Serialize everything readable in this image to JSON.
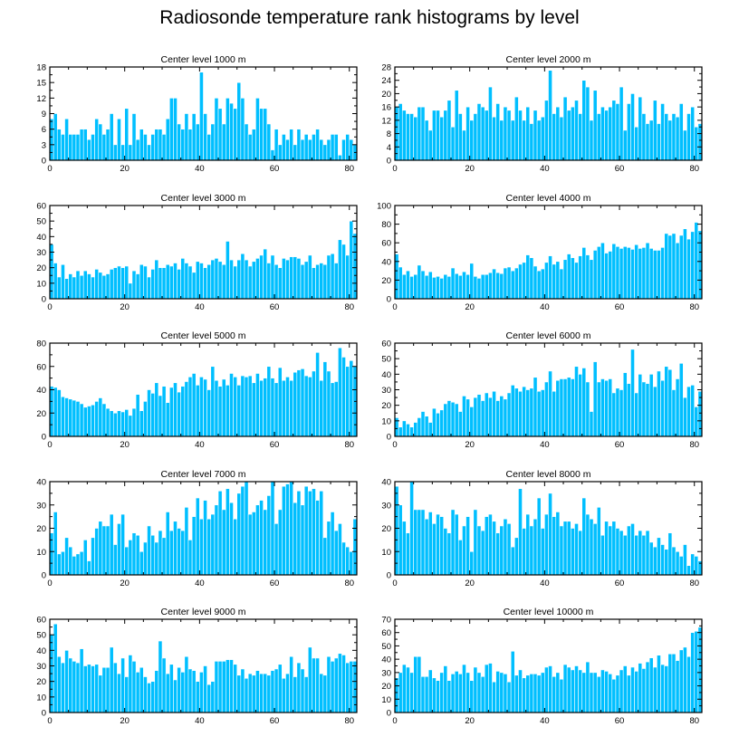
{
  "page": {
    "title": "Radiosonde temperature rank histograms by level"
  },
  "style": {
    "bar_color": "#00BFFF",
    "bar_edge": "#ffffff",
    "axis_color": "#000000"
  },
  "chart_data": [
    {
      "type": "bar",
      "title": "Center level 1000 m",
      "xlabel": "",
      "ylabel": "",
      "xlim": [
        0,
        82
      ],
      "ylim": [
        0,
        18
      ],
      "xticks": [
        0,
        20,
        40,
        60,
        80
      ],
      "yticks": [
        0,
        3,
        6,
        9,
        12,
        15,
        18
      ],
      "values": [
        8,
        9,
        6,
        5,
        8,
        5,
        5,
        5,
        6,
        6,
        4,
        5,
        8,
        7,
        5,
        6,
        9,
        3,
        8,
        3,
        10,
        3,
        9,
        4,
        6,
        5,
        3,
        5,
        6,
        6,
        5,
        8,
        12,
        12,
        7,
        6,
        9,
        6,
        9,
        7,
        17,
        9,
        5,
        7,
        12,
        10,
        7,
        12,
        11,
        10,
        15,
        12,
        7,
        5,
        6,
        12,
        10,
        10,
        7,
        2,
        6,
        3,
        5,
        4,
        6,
        3,
        6,
        4,
        5,
        4,
        5,
        6,
        4,
        3,
        4,
        5,
        5,
        1,
        4,
        5,
        4,
        3
      ]
    },
    {
      "type": "bar",
      "title": "Center level 2000 m",
      "xlabel": "",
      "ylabel": "",
      "xlim": [
        0,
        82
      ],
      "ylim": [
        0,
        28
      ],
      "xticks": [
        0,
        20,
        40,
        60,
        80
      ],
      "yticks": [
        0,
        4,
        8,
        12,
        16,
        20,
        24,
        28
      ],
      "values": [
        16,
        17,
        15,
        14,
        14,
        13,
        16,
        16,
        12,
        9,
        15,
        15,
        13,
        15,
        18,
        10,
        21,
        14,
        9,
        16,
        12,
        14,
        17,
        16,
        15,
        22,
        13,
        17,
        12,
        16,
        15,
        12,
        19,
        15,
        12,
        16,
        11,
        15,
        12,
        13,
        18,
        27,
        14,
        16,
        13,
        19,
        15,
        16,
        18,
        14,
        24,
        22,
        12,
        21,
        14,
        16,
        15,
        16,
        18,
        17,
        22,
        9,
        17,
        20,
        10,
        19,
        14,
        11,
        12,
        18,
        11,
        17,
        14,
        12,
        14,
        13,
        17,
        9,
        14,
        16,
        10,
        11
      ]
    },
    {
      "type": "bar",
      "title": "Center level 3000 m",
      "xlabel": "",
      "ylabel": "",
      "xlim": [
        0,
        82
      ],
      "ylim": [
        0,
        60
      ],
      "xticks": [
        0,
        20,
        40,
        60,
        80
      ],
      "yticks": [
        0,
        10,
        20,
        30,
        40,
        50,
        60
      ],
      "values": [
        35,
        23,
        14,
        22,
        13,
        16,
        14,
        18,
        15,
        18,
        16,
        14,
        19,
        17,
        15,
        16,
        19,
        20,
        21,
        20,
        21,
        10,
        18,
        16,
        22,
        21,
        14,
        19,
        25,
        20,
        20,
        22,
        21,
        23,
        19,
        26,
        23,
        21,
        17,
        24,
        23,
        20,
        22,
        25,
        26,
        24,
        22,
        37,
        25,
        21,
        25,
        29,
        25,
        21,
        24,
        26,
        28,
        32,
        23,
        28,
        22,
        20,
        26,
        25,
        27,
        27,
        26,
        22,
        24,
        28,
        20,
        22,
        23,
        22,
        28,
        29,
        23,
        38,
        35,
        28,
        50,
        42
      ]
    },
    {
      "type": "bar",
      "title": "Center level 4000 m",
      "xlabel": "",
      "ylabel": "",
      "xlim": [
        0,
        82
      ],
      "ylim": [
        0,
        100
      ],
      "xticks": [
        0,
        20,
        40,
        60,
        80
      ],
      "yticks": [
        0,
        20,
        40,
        60,
        80,
        100
      ],
      "values": [
        48,
        34,
        26,
        30,
        24,
        26,
        36,
        30,
        25,
        29,
        23,
        24,
        22,
        26,
        24,
        33,
        27,
        25,
        29,
        26,
        38,
        24,
        22,
        26,
        26,
        28,
        32,
        28,
        27,
        33,
        34,
        30,
        33,
        37,
        39,
        47,
        44,
        35,
        30,
        32,
        39,
        46,
        37,
        40,
        32,
        42,
        48,
        44,
        39,
        46,
        55,
        47,
        42,
        52,
        56,
        60,
        49,
        51,
        59,
        56,
        54,
        56,
        55,
        53,
        58,
        54,
        55,
        60,
        54,
        52,
        52,
        55,
        70,
        68,
        70,
        60,
        68,
        75,
        64,
        72,
        82,
        73
      ]
    },
    {
      "type": "bar",
      "title": "Center level 5000 m",
      "xlabel": "",
      "ylabel": "",
      "xlim": [
        0,
        82
      ],
      "ylim": [
        0,
        80
      ],
      "xticks": [
        0,
        20,
        40,
        60,
        80
      ],
      "yticks": [
        0,
        20,
        40,
        60,
        80
      ],
      "values": [
        43,
        42,
        40,
        34,
        33,
        32,
        31,
        30,
        28,
        25,
        26,
        27,
        30,
        33,
        28,
        24,
        22,
        20,
        22,
        21,
        23,
        18,
        24,
        36,
        22,
        30,
        40,
        37,
        46,
        35,
        43,
        29,
        42,
        46,
        38,
        43,
        47,
        51,
        54,
        44,
        51,
        49,
        40,
        60,
        48,
        43,
        49,
        44,
        54,
        51,
        44,
        52,
        51,
        52,
        46,
        54,
        48,
        50,
        60,
        50,
        46,
        59,
        48,
        51,
        48,
        55,
        57,
        58,
        52,
        51,
        56,
        72,
        48,
        64,
        56,
        46,
        47,
        76,
        68,
        60,
        65,
        60
      ]
    },
    {
      "type": "bar",
      "title": "Center level 6000 m",
      "xlabel": "",
      "ylabel": "",
      "xlim": [
        0,
        82
      ],
      "ylim": [
        0,
        60
      ],
      "xticks": [
        0,
        20,
        40,
        60,
        80
      ],
      "yticks": [
        0,
        10,
        20,
        30,
        40,
        50,
        60
      ],
      "values": [
        12,
        6,
        10,
        8,
        6,
        9,
        12,
        16,
        13,
        9,
        18,
        15,
        17,
        21,
        23,
        22,
        21,
        16,
        26,
        24,
        19,
        25,
        27,
        23,
        28,
        25,
        29,
        23,
        26,
        24,
        28,
        33,
        31,
        29,
        32,
        30,
        31,
        38,
        29,
        30,
        35,
        42,
        29,
        36,
        37,
        37,
        38,
        37,
        45,
        40,
        44,
        35,
        16,
        48,
        35,
        37,
        36,
        37,
        28,
        31,
        30,
        41,
        34,
        56,
        28,
        40,
        35,
        34,
        40,
        32,
        42,
        36,
        45,
        43,
        30,
        37,
        47,
        25,
        32,
        33,
        19,
        29
      ]
    },
    {
      "type": "bar",
      "title": "Center level 7000 m",
      "xlabel": "",
      "ylabel": "",
      "xlim": [
        0,
        82
      ],
      "ylim": [
        0,
        40
      ],
      "xticks": [
        0,
        20,
        40,
        60,
        80
      ],
      "yticks": [
        0,
        10,
        20,
        30,
        40
      ],
      "values": [
        18,
        27,
        9,
        10,
        16,
        12,
        8,
        9,
        10,
        15,
        6,
        16,
        20,
        23,
        21,
        21,
        26,
        13,
        22,
        26,
        12,
        15,
        18,
        17,
        10,
        14,
        21,
        17,
        14,
        19,
        16,
        27,
        19,
        23,
        20,
        19,
        29,
        15,
        25,
        33,
        24,
        32,
        24,
        26,
        30,
        36,
        28,
        37,
        31,
        24,
        35,
        38,
        40,
        26,
        27,
        30,
        32,
        28,
        34,
        40,
        22,
        28,
        38,
        39,
        40,
        31,
        36,
        30,
        38,
        36,
        37,
        32,
        36,
        16,
        23,
        27,
        19,
        22,
        14,
        12,
        10,
        24
      ]
    },
    {
      "type": "bar",
      "title": "Center level 8000 m",
      "xlabel": "",
      "ylabel": "",
      "xlim": [
        0,
        82
      ],
      "ylim": [
        0,
        40
      ],
      "xticks": [
        0,
        20,
        40,
        60,
        80
      ],
      "yticks": [
        0,
        10,
        20,
        30,
        40
      ],
      "values": [
        38,
        30,
        23,
        18,
        40,
        28,
        28,
        28,
        24,
        27,
        22,
        26,
        25,
        20,
        18,
        28,
        26,
        15,
        21,
        25,
        10,
        28,
        21,
        19,
        25,
        26,
        23,
        18,
        21,
        24,
        22,
        12,
        16,
        37,
        20,
        26,
        21,
        24,
        33,
        20,
        26,
        35,
        25,
        27,
        21,
        23,
        23,
        20,
        22,
        19,
        33,
        26,
        24,
        22,
        29,
        17,
        23,
        21,
        23,
        20,
        19,
        17,
        21,
        22,
        17,
        19,
        17,
        19,
        14,
        12,
        16,
        13,
        11,
        18,
        12,
        10,
        8,
        13,
        4,
        9,
        8,
        6
      ]
    },
    {
      "type": "bar",
      "title": "Center level 9000 m",
      "xlabel": "",
      "ylabel": "",
      "xlim": [
        0,
        82
      ],
      "ylim": [
        0,
        60
      ],
      "xticks": [
        0,
        20,
        40,
        60,
        80
      ],
      "yticks": [
        0,
        10,
        20,
        30,
        40,
        50,
        60
      ],
      "values": [
        50,
        57,
        36,
        32,
        40,
        35,
        33,
        32,
        41,
        30,
        31,
        30,
        31,
        24,
        29,
        29,
        42,
        32,
        25,
        35,
        23,
        37,
        33,
        26,
        29,
        23,
        19,
        20,
        27,
        46,
        35,
        25,
        31,
        21,
        29,
        26,
        36,
        28,
        27,
        20,
        26,
        30,
        18,
        20,
        33,
        33,
        33,
        34,
        34,
        31,
        24,
        28,
        22,
        25,
        24,
        27,
        25,
        25,
        24,
        27,
        28,
        31,
        22,
        25,
        36,
        23,
        32,
        28,
        23,
        42,
        35,
        35,
        25,
        24,
        36,
        33,
        35,
        38,
        37,
        32,
        33,
        33
      ]
    },
    {
      "type": "bar",
      "title": "Center level 10000 m",
      "xlabel": "",
      "ylabel": "",
      "xlim": [
        0,
        82
      ],
      "ylim": [
        0,
        70
      ],
      "xticks": [
        0,
        20,
        40,
        60,
        80
      ],
      "yticks": [
        0,
        10,
        20,
        30,
        40,
        50,
        60,
        70
      ],
      "values": [
        26,
        30,
        36,
        34,
        30,
        42,
        42,
        27,
        27,
        32,
        26,
        24,
        30,
        35,
        24,
        29,
        31,
        29,
        36,
        30,
        24,
        34,
        30,
        27,
        36,
        37,
        23,
        31,
        30,
        29,
        23,
        46,
        28,
        32,
        26,
        28,
        29,
        29,
        28,
        30,
        34,
        35,
        27,
        30,
        25,
        36,
        34,
        32,
        35,
        32,
        30,
        38,
        30,
        30,
        27,
        32,
        31,
        29,
        25,
        28,
        32,
        35,
        28,
        34,
        31,
        37,
        33,
        38,
        41,
        34,
        43,
        36,
        35,
        44,
        44,
        39,
        47,
        49,
        42,
        60,
        61,
        64
      ]
    }
  ]
}
